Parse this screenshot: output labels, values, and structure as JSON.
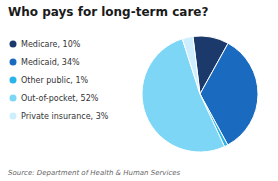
{
  "chart_data": {
    "type": "pie",
    "title": "Who pays for long-term care?",
    "categories": [
      "Medicare, 10%",
      "Medicaid, 34%",
      "Other public, 1%",
      "Out-of-pocket, 52%",
      "Private insurance, 3%"
    ],
    "values": [
      10,
      34,
      1,
      52,
      3
    ],
    "colors": [
      "#1b3a6b",
      "#1a6bbf",
      "#29b5e8",
      "#7dd6f5",
      "#cceeff"
    ],
    "legend": "left",
    "annotations": [
      "Source: Department of Health & Human Services"
    ]
  }
}
